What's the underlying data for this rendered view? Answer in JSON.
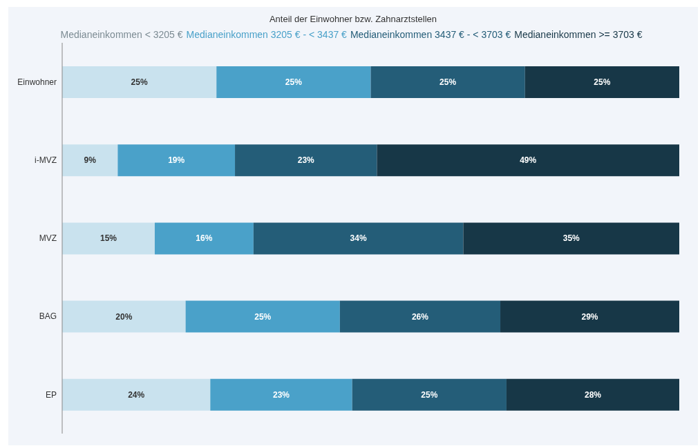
{
  "chart_data": {
    "type": "bar",
    "orientation": "horizontal",
    "stacked": true,
    "tick_labels": "y",
    "title": "Anteil der Einwohner bzw. Zahnarztstellen",
    "categories": [
      "Einwohner",
      "i-MVZ",
      "MVZ",
      "BAG",
      "EP"
    ],
    "legend": "top",
    "grid": false,
    "series": [
      {
        "name": "Medianeinkommen < 3205 €",
        "color": "#c9e2ee",
        "values": [
          25,
          9,
          15,
          20,
          24
        ],
        "value_labels": [
          "25%",
          "9%",
          "15%",
          "20%",
          "24%"
        ]
      },
      {
        "name": "Medianeinkommen 3205 € - < 3437 €",
        "color": "#4aa1c9",
        "values": [
          25,
          19,
          16,
          25,
          23
        ],
        "value_labels": [
          "25%",
          "19%",
          "16%",
          "25%",
          "23%"
        ]
      },
      {
        "name": "Medianeinkommen 3437 € - < 3703 €",
        "color": "#245d78",
        "values": [
          25,
          23,
          34,
          26,
          25
        ],
        "value_labels": [
          "25%",
          "23%",
          "34%",
          "26%",
          "25%"
        ]
      },
      {
        "name": "Medianeinkommen >= 3703 €",
        "color": "#173747",
        "values": [
          25,
          49,
          35,
          29,
          28
        ],
        "value_labels": [
          "25%",
          "49%",
          "35%",
          "29%",
          "28%"
        ]
      }
    ]
  }
}
